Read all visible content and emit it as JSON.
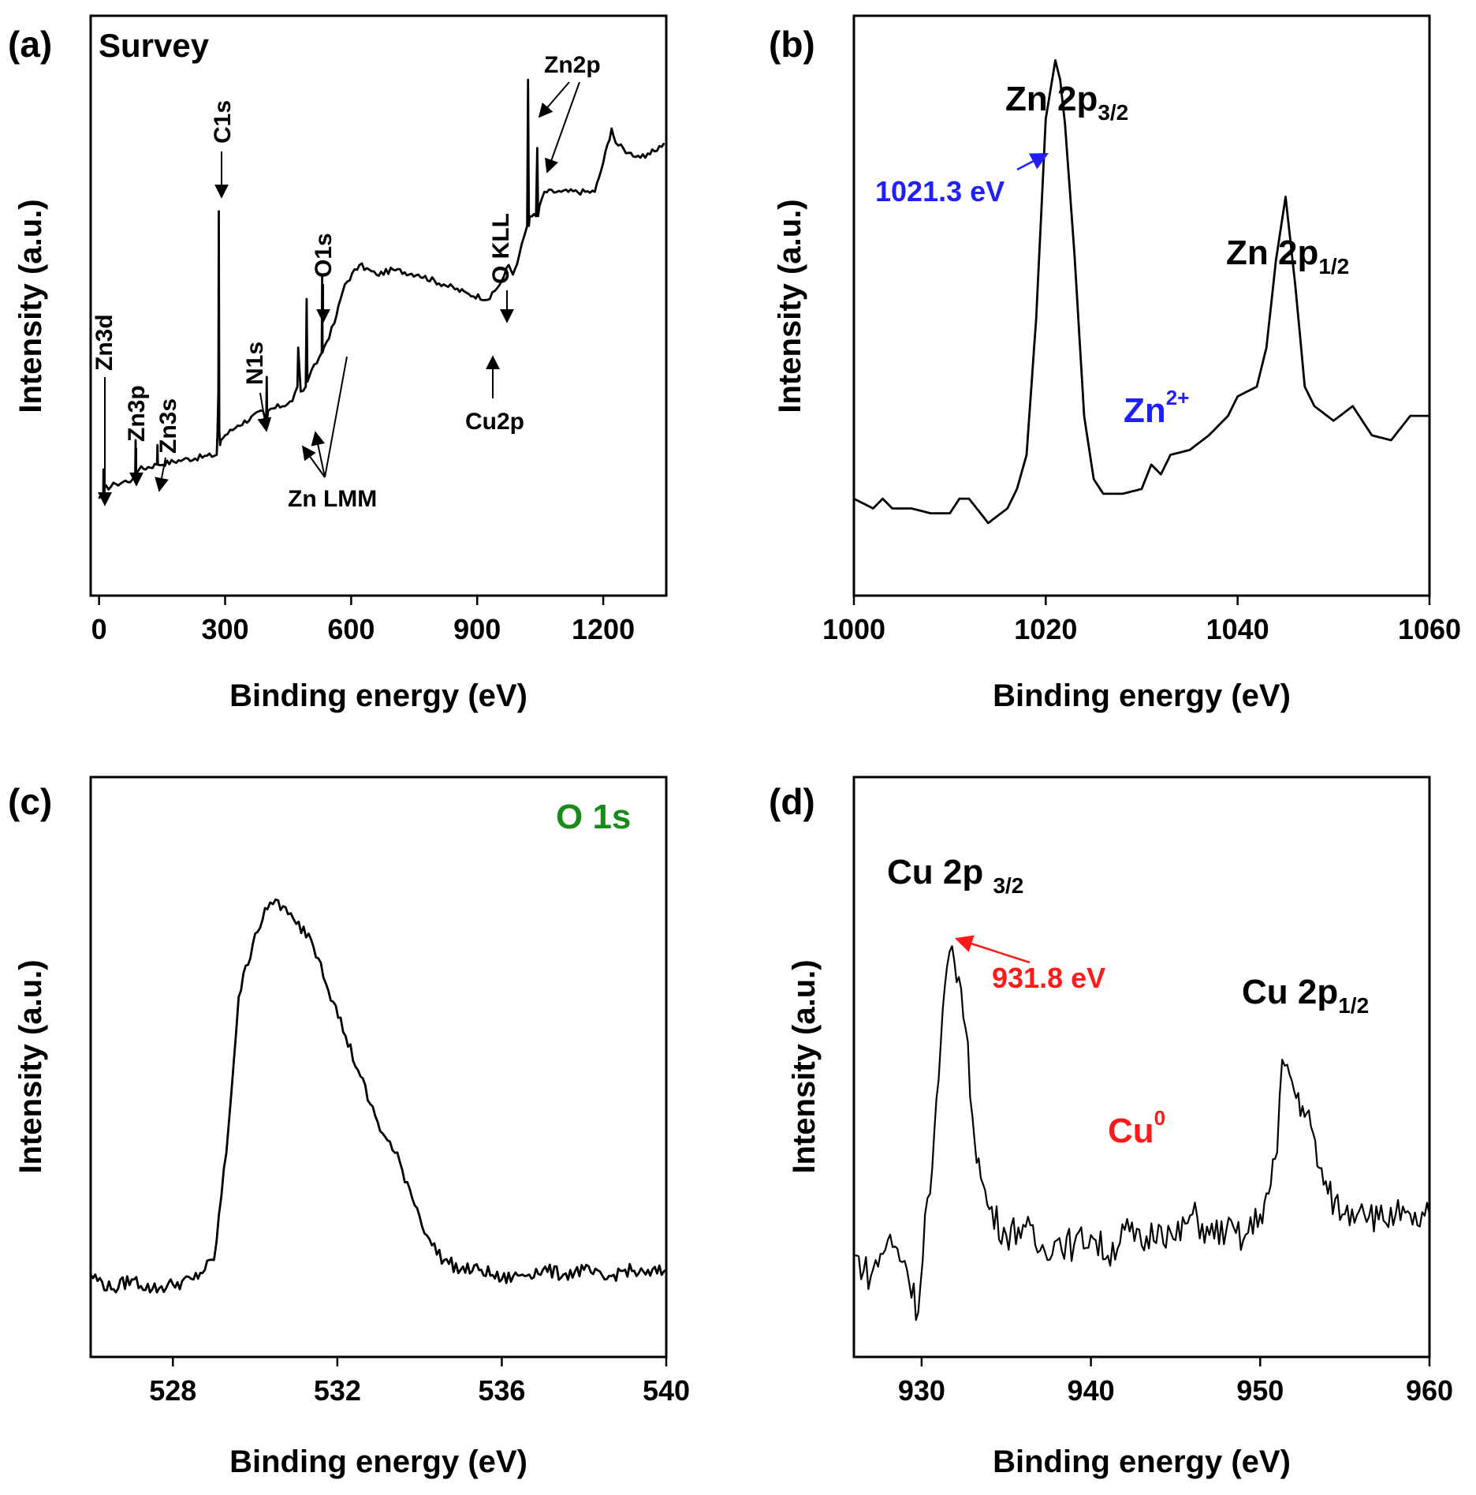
{
  "colors": {
    "blue": "#1f1fff",
    "red": "#ff1a1a",
    "green": "#1a8a1a",
    "black": "#000000"
  },
  "chart_data": [
    {
      "type": "line",
      "panel": "(a)",
      "title": "Survey",
      "xlabel": "Binding energy (eV)",
      "ylabel": "Intensity (a.u.)",
      "xlim": [
        -20,
        1350
      ],
      "ylim": [
        0,
        100
      ],
      "xticks": [
        0,
        300,
        600,
        900,
        1200
      ],
      "x": [
        0,
        10,
        10.5,
        11,
        40,
        80,
        86,
        87,
        88,
        95,
        138,
        139,
        140,
        200,
        280,
        282,
        284,
        285,
        286,
        288,
        290,
        300,
        330,
        390,
        398,
        399,
        400,
        402,
        460,
        472,
        474,
        480,
        492,
        494,
        496,
        500,
        530,
        531,
        532,
        535,
        560,
        575,
        585,
        620,
        660,
        700,
        760,
        820,
        880,
        930,
        960,
        975,
        985,
        1000,
        1019,
        1021,
        1023,
        1025,
        1040,
        1043,
        1045,
        1048,
        1060,
        1100,
        1180,
        1200,
        1220,
        1230,
        1260,
        1300,
        1345
      ],
      "y": [
        8,
        9,
        14,
        10,
        11,
        12,
        13,
        20,
        13,
        14,
        15,
        19,
        15,
        16,
        17,
        22,
        30,
        67,
        22,
        19,
        20,
        21,
        23,
        26,
        24,
        33,
        24,
        26,
        28,
        31,
        39,
        30,
        31,
        49,
        32,
        33,
        38,
        54,
        38,
        39,
        44,
        49,
        52,
        56,
        54,
        55,
        54,
        52,
        50,
        49,
        53,
        56,
        54,
        58,
        64,
        94,
        64,
        66,
        66,
        80,
        66,
        68,
        71,
        71,
        71,
        77,
        84,
        81,
        79,
        78,
        81
      ],
      "annotations": [
        "Zn3d",
        "Zn3p",
        "Zn3s",
        "C1s",
        "N1s",
        "O1s",
        "Zn LMM",
        "Cu2p",
        "O KLL",
        "Zn2p"
      ]
    },
    {
      "type": "line",
      "panel": "(b)",
      "xlabel": "Binding energy (eV)",
      "ylabel": "Intensity (a.u.)",
      "xlim": [
        1000,
        1060
      ],
      "ylim": [
        0,
        100
      ],
      "xticks": [
        1000,
        1020,
        1040,
        1060
      ],
      "x": [
        1000,
        1002,
        1003,
        1004,
        1006,
        1008,
        1010,
        1011,
        1012,
        1014,
        1016,
        1017,
        1018,
        1019,
        1020,
        1021,
        1021.5,
        1022,
        1023,
        1024,
        1025,
        1026,
        1028,
        1030,
        1031,
        1032,
        1033,
        1035,
        1037,
        1039,
        1040,
        1042,
        1043,
        1044,
        1045,
        1046,
        1047,
        1048,
        1050,
        1052,
        1054,
        1056,
        1058,
        1060
      ],
      "y": [
        8,
        6,
        8,
        6,
        6,
        5,
        5,
        8,
        8,
        3,
        6,
        10,
        17,
        45,
        86,
        98,
        94,
        85,
        58,
        25,
        12,
        9,
        9,
        10,
        15,
        13,
        17,
        18,
        21,
        25,
        29,
        31,
        39,
        57,
        70,
        52,
        31,
        27,
        24,
        27,
        21,
        20,
        25,
        25
      ],
      "annotations": [
        "Zn 2p3/2",
        "Zn 2p1/2",
        "1021.3 eV",
        "Zn2+"
      ]
    },
    {
      "type": "line",
      "panel": "(c)",
      "title": "O 1s",
      "xlabel": "Binding energy (eV)",
      "ylabel": "Intensity (a.u.)",
      "xlim": [
        526,
        540
      ],
      "ylim": [
        0,
        100
      ],
      "xticks": [
        528,
        532,
        536,
        540
      ],
      "x": [
        526,
        526.5,
        527,
        527.5,
        528,
        528.5,
        529,
        529.3,
        529.6,
        530,
        530.3,
        530.5,
        530.8,
        531,
        531.3,
        531.6,
        531.9,
        532.2,
        532.5,
        532.8,
        533.1,
        533.4,
        533.7,
        534,
        534.3,
        534.6,
        535,
        535.5,
        536,
        536.5,
        537,
        537.5,
        538,
        538.5,
        539,
        539.5,
        540
      ],
      "y": [
        5,
        2,
        4,
        2,
        3,
        4,
        8,
        30,
        62,
        75,
        80,
        82,
        79,
        77,
        75,
        69,
        61,
        54,
        47,
        40,
        34,
        30,
        24,
        17,
        11,
        8,
        6,
        6,
        4,
        5,
        6,
        5,
        6,
        4,
        6,
        5,
        6
      ],
      "annotations": [
        "O 1s"
      ]
    },
    {
      "type": "line",
      "panel": "(d)",
      "xlabel": "Binding energy (eV)",
      "ylabel": "Intensity (a.u.)",
      "xlim": [
        926,
        960
      ],
      "ylim": [
        0,
        100
      ],
      "xticks": [
        930,
        940,
        950,
        960
      ],
      "x": [
        926,
        927,
        928,
        929,
        929.8,
        930.2,
        930.5,
        931,
        931.5,
        931.8,
        932.2,
        932.6,
        933,
        933.5,
        934,
        935,
        936,
        937,
        938,
        939,
        940,
        941,
        942,
        943,
        944,
        945,
        946,
        947,
        948,
        949,
        950,
        950.5,
        951,
        951.3,
        951.6,
        952,
        952.5,
        953,
        953.5,
        954,
        955,
        956,
        957,
        958,
        959,
        960
      ],
      "y": [
        14,
        10,
        17,
        13,
        3,
        22,
        26,
        48,
        70,
        74,
        68,
        58,
        41,
        29,
        23,
        18,
        20,
        15,
        17,
        16,
        18,
        14,
        19,
        16,
        20,
        17,
        22,
        18,
        19,
        17,
        22,
        26,
        34,
        52,
        51,
        46,
        43,
        39,
        31,
        26,
        22,
        24,
        21,
        22,
        20,
        22
      ],
      "annotations": [
        "Cu 2p 3/2",
        "Cu 2p1/2",
        "931.8 eV",
        "Cu0"
      ]
    }
  ],
  "figure": {
    "panels": [
      "(a)",
      "(b)",
      "(c)",
      "(d)"
    ],
    "xlabel": "Binding energy (eV)",
    "ylabel": "Intensity (a.u.)",
    "titles": {
      "a": "Survey",
      "c": "O 1s"
    },
    "annotations_a": {
      "zn3d": "Zn3d",
      "zn3p": "Zn3p",
      "zn3s": "Zn3s",
      "c1s": "C1s",
      "n1s": "N1s",
      "o1s": "O1s",
      "znlmm": "Zn LMM",
      "cu2p": "Cu2p",
      "okll": "O KLL",
      "zn2p": "Zn2p"
    },
    "annotations_b": {
      "zn2p32_main": "Zn 2p",
      "zn2p32_sub": "3/2",
      "zn2p12_main": "Zn 2p",
      "zn2p12_sub": "1/2",
      "peak_energy": "1021.3 eV",
      "state_main": "Zn",
      "state_sup": "2+"
    },
    "annotations_d": {
      "cu2p32_main": "Cu 2p ",
      "cu2p32_sub": "3/2",
      "cu2p12_main": "Cu 2p",
      "cu2p12_sub": "1/2",
      "peak_energy": "931.8 eV",
      "state_main": "Cu",
      "state_sup": "0"
    }
  }
}
